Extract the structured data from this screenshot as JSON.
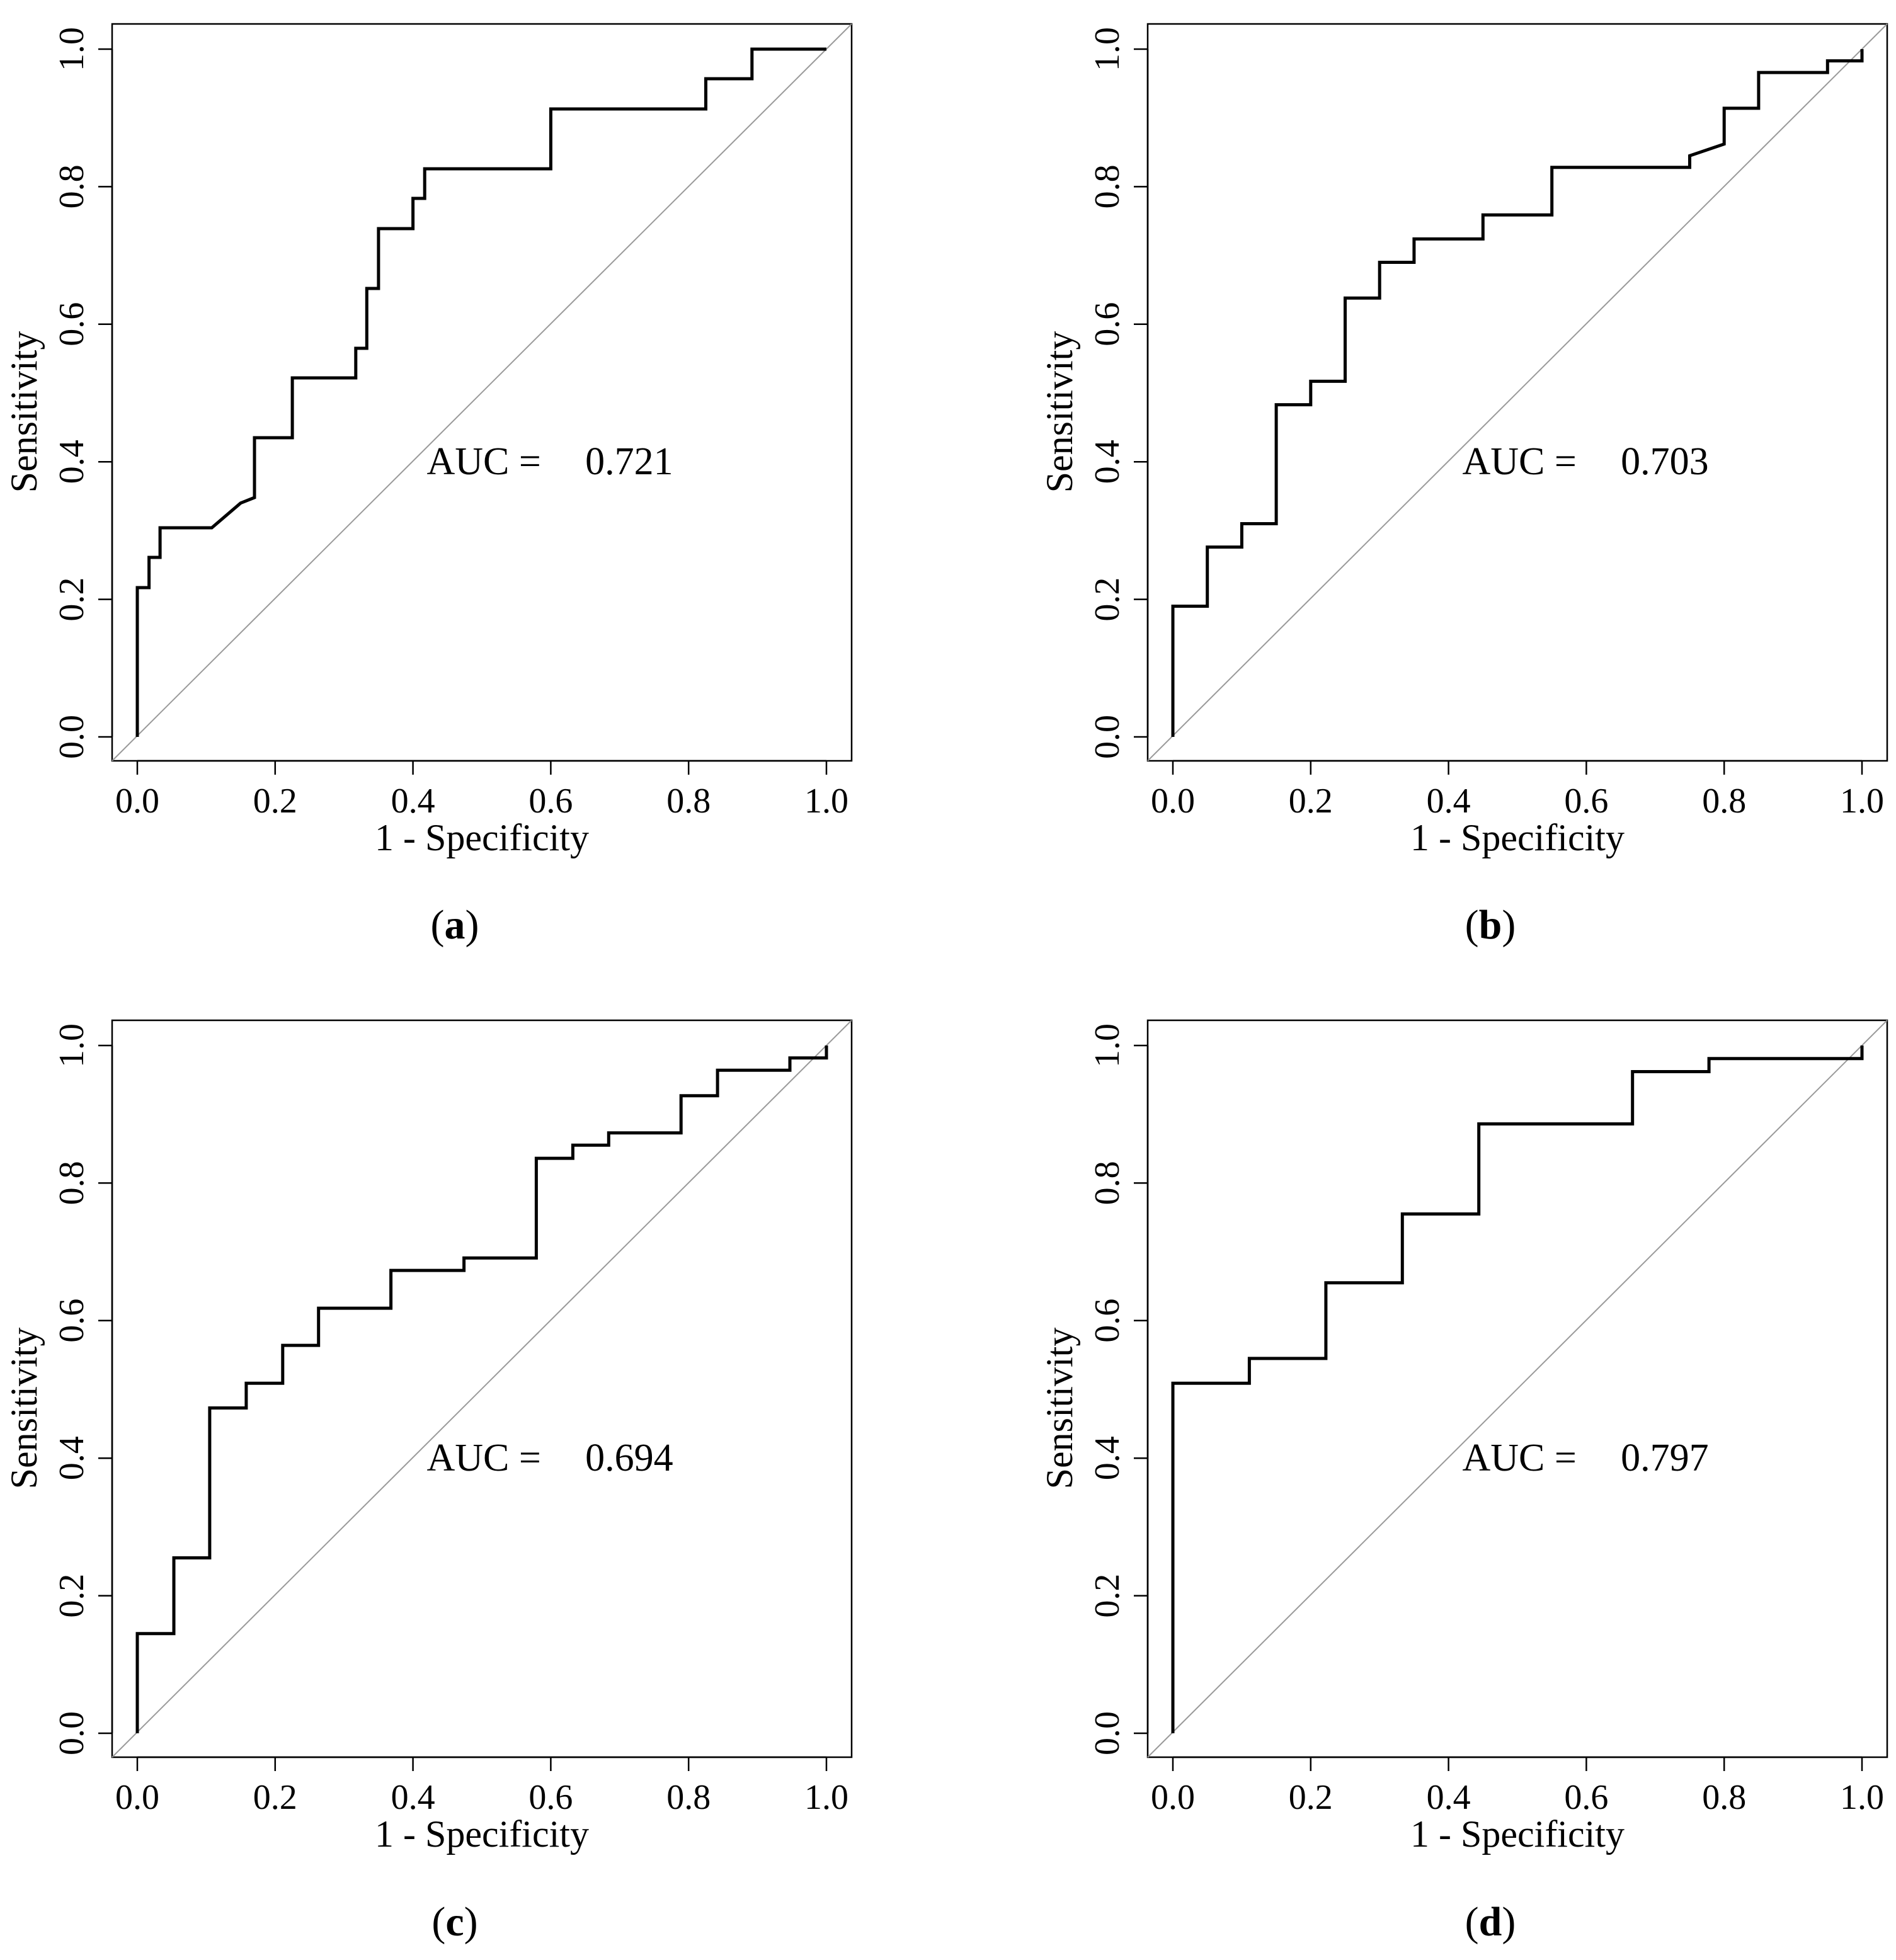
{
  "chart_data": [
    {
      "panel": "a",
      "type": "line",
      "xlabel": "1 - Specificity",
      "ylabel": "Sensitivity",
      "xlim": [
        0,
        1
      ],
      "ylim": [
        0,
        1
      ],
      "xticks": [
        "0.0",
        "0.2",
        "0.4",
        "0.6",
        "0.8",
        "1.0"
      ],
      "yticks": [
        "0.0",
        "0.2",
        "0.4",
        "0.6",
        "0.8",
        "1.0"
      ],
      "auc_label": "AUC =",
      "auc_value": "0.721",
      "diagonal": true,
      "series": [
        {
          "name": "ROC",
          "points": [
            [
              0,
              0
            ],
            [
              0,
              0.217
            ],
            [
              0.017,
              0.217
            ],
            [
              0.017,
              0.261
            ],
            [
              0.033,
              0.261
            ],
            [
              0.033,
              0.304
            ],
            [
              0.108,
              0.304
            ],
            [
              0.15,
              0.34
            ],
            [
              0.17,
              0.348
            ],
            [
              0.17,
              0.435
            ],
            [
              0.225,
              0.435
            ],
            [
              0.225,
              0.522
            ],
            [
              0.317,
              0.522
            ],
            [
              0.317,
              0.565
            ],
            [
              0.333,
              0.565
            ],
            [
              0.333,
              0.652
            ],
            [
              0.35,
              0.652
            ],
            [
              0.35,
              0.739
            ],
            [
              0.4,
              0.739
            ],
            [
              0.4,
              0.783
            ],
            [
              0.417,
              0.783
            ],
            [
              0.417,
              0.826
            ],
            [
              0.6,
              0.826
            ],
            [
              0.6,
              0.913
            ],
            [
              0.825,
              0.913
            ],
            [
              0.825,
              0.957
            ],
            [
              0.892,
              0.957
            ],
            [
              0.892,
              1.0
            ],
            [
              1.0,
              1.0
            ]
          ]
        }
      ]
    },
    {
      "panel": "b",
      "type": "line",
      "xlabel": "1 - Specificity",
      "ylabel": "Sensitivity",
      "xlim": [
        0,
        1
      ],
      "ylim": [
        0,
        1
      ],
      "xticks": [
        "0.0",
        "0.2",
        "0.4",
        "0.6",
        "0.8",
        "1.0"
      ],
      "yticks": [
        "0.0",
        "0.2",
        "0.4",
        "0.6",
        "0.8",
        "1.0"
      ],
      "auc_label": "AUC =",
      "auc_value": "0.703",
      "diagonal": true,
      "series": [
        {
          "name": "ROC",
          "points": [
            [
              0,
              0
            ],
            [
              0,
              0.19
            ],
            [
              0.05,
              0.19
            ],
            [
              0.05,
              0.276
            ],
            [
              0.1,
              0.276
            ],
            [
              0.1,
              0.31
            ],
            [
              0.15,
              0.31
            ],
            [
              0.15,
              0.483
            ],
            [
              0.2,
              0.483
            ],
            [
              0.2,
              0.517
            ],
            [
              0.25,
              0.517
            ],
            [
              0.25,
              0.638
            ],
            [
              0.3,
              0.638
            ],
            [
              0.3,
              0.69
            ],
            [
              0.35,
              0.69
            ],
            [
              0.35,
              0.724
            ],
            [
              0.45,
              0.724
            ],
            [
              0.45,
              0.759
            ],
            [
              0.55,
              0.759
            ],
            [
              0.55,
              0.828
            ],
            [
              0.75,
              0.828
            ],
            [
              0.75,
              0.845
            ],
            [
              0.8,
              0.862
            ],
            [
              0.8,
              0.914
            ],
            [
              0.85,
              0.914
            ],
            [
              0.85,
              0.966
            ],
            [
              0.95,
              0.966
            ],
            [
              0.95,
              0.983
            ],
            [
              1.0,
              0.983
            ],
            [
              1.0,
              1.0
            ]
          ]
        }
      ]
    },
    {
      "panel": "c",
      "type": "line",
      "xlabel": "1 - Specificity",
      "ylabel": "Sensitivity",
      "xlim": [
        0,
        1
      ],
      "ylim": [
        0,
        1
      ],
      "xticks": [
        "0.0",
        "0.2",
        "0.4",
        "0.6",
        "0.8",
        "1.0"
      ],
      "yticks": [
        "0.0",
        "0.2",
        "0.4",
        "0.6",
        "0.8",
        "1.0"
      ],
      "auc_label": "AUC =",
      "auc_value": "0.694",
      "diagonal": true,
      "series": [
        {
          "name": "ROC",
          "points": [
            [
              0,
              0
            ],
            [
              0,
              0.145
            ],
            [
              0.053,
              0.145
            ],
            [
              0.053,
              0.255
            ],
            [
              0.105,
              0.255
            ],
            [
              0.105,
              0.473
            ],
            [
              0.158,
              0.473
            ],
            [
              0.158,
              0.509
            ],
            [
              0.211,
              0.509
            ],
            [
              0.211,
              0.564
            ],
            [
              0.263,
              0.564
            ],
            [
              0.263,
              0.618
            ],
            [
              0.368,
              0.618
            ],
            [
              0.368,
              0.673
            ],
            [
              0.474,
              0.673
            ],
            [
              0.474,
              0.691
            ],
            [
              0.579,
              0.691
            ],
            [
              0.579,
              0.836
            ],
            [
              0.632,
              0.836
            ],
            [
              0.632,
              0.855
            ],
            [
              0.684,
              0.855
            ],
            [
              0.684,
              0.873
            ],
            [
              0.789,
              0.873
            ],
            [
              0.789,
              0.927
            ],
            [
              0.842,
              0.927
            ],
            [
              0.842,
              0.964
            ],
            [
              0.947,
              0.964
            ],
            [
              0.947,
              0.982
            ],
            [
              1.0,
              0.982
            ],
            [
              1.0,
              1.0
            ]
          ]
        }
      ]
    },
    {
      "panel": "d",
      "type": "line",
      "xlabel": "1 - Specificity",
      "ylabel": "Sensitivity",
      "xlim": [
        0,
        1
      ],
      "ylim": [
        0,
        1
      ],
      "xticks": [
        "0.0",
        "0.2",
        "0.4",
        "0.6",
        "0.8",
        "1.0"
      ],
      "yticks": [
        "0.0",
        "0.2",
        "0.4",
        "0.6",
        "0.8",
        "1.0"
      ],
      "auc_label": "AUC =",
      "auc_value": "0.797",
      "diagonal": true,
      "series": [
        {
          "name": "ROC",
          "points": [
            [
              0,
              0
            ],
            [
              0,
              0.509
            ],
            [
              0.111,
              0.509
            ],
            [
              0.111,
              0.545
            ],
            [
              0.222,
              0.545
            ],
            [
              0.222,
              0.655
            ],
            [
              0.333,
              0.655
            ],
            [
              0.333,
              0.755
            ],
            [
              0.444,
              0.755
            ],
            [
              0.444,
              0.886
            ],
            [
              0.667,
              0.886
            ],
            [
              0.667,
              0.962
            ],
            [
              0.778,
              0.962
            ],
            [
              0.778,
              0.981
            ],
            [
              1.0,
              0.981
            ],
            [
              1.0,
              1.0
            ]
          ]
        }
      ]
    }
  ],
  "captions": [
    {
      "open": "(",
      "letter": "a",
      "close": ")"
    },
    {
      "open": "(",
      "letter": "b",
      "close": ")"
    },
    {
      "open": "(",
      "letter": "c",
      "close": ")"
    },
    {
      "open": "(",
      "letter": "d",
      "close": ")"
    }
  ]
}
